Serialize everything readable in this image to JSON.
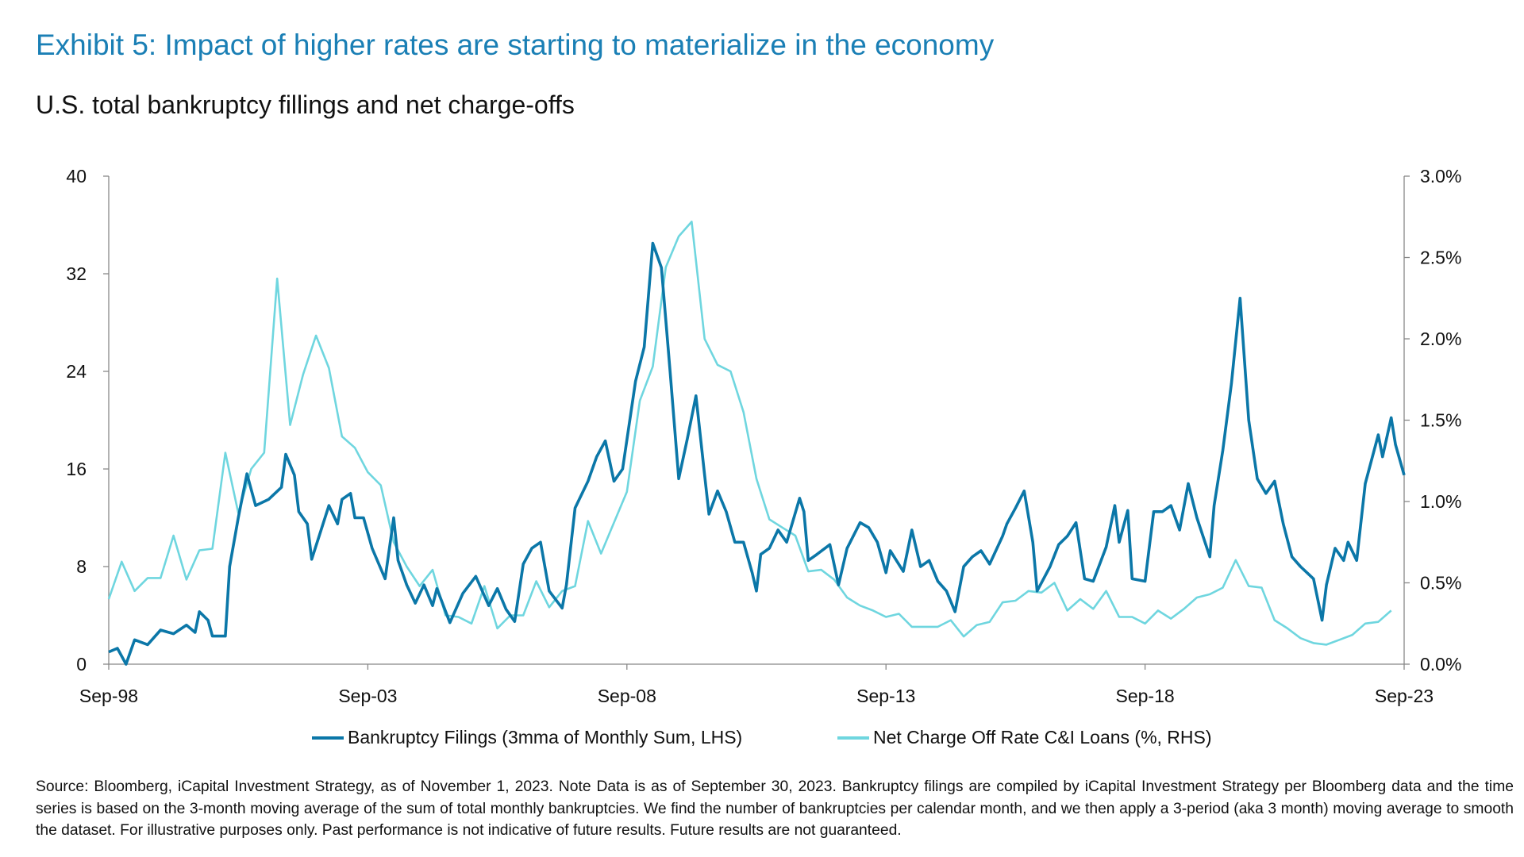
{
  "title": "Exhibit 5: Impact of higher rates are starting to materialize in the economy",
  "subtitle": "U.S. total bankruptcy fillings and net charge-offs",
  "footnote": "Source: Bloomberg, iCapital Investment Strategy, as of November 1, 2023. Note Data is as of September 30, 2023. Bankruptcy filings are compiled by iCapital Investment Strategy per Bloomberg data and the time series is based on the 3-month moving average of the sum of total monthly bankruptcies. We find the number of bankruptcies per calendar month, and we then apply a 3-period (aka 3 month) moving average to smooth the dataset. For illustrative purposes only. Past performance is not indicative of future results. Future results are not guaranteed.",
  "colors": {
    "title": "#1a7fb5",
    "bankruptcy": "#0b77a8",
    "nco": "#6fd6df"
  },
  "chart_data": {
    "type": "line",
    "legend_placement": "bottom",
    "grid": false,
    "x_range": [
      "1998-09",
      "2023-09"
    ],
    "x_ticks": [
      "Sep-98",
      "Sep-03",
      "Sep-08",
      "Sep-13",
      "Sep-18",
      "Sep-23"
    ],
    "y_left": {
      "range": [
        0,
        40
      ],
      "ticks": [
        "0",
        "8",
        "16",
        "24",
        "32",
        "40"
      ]
    },
    "y_right": {
      "range": [
        0,
        3.0
      ],
      "ticks": [
        "0.0%",
        "0.5%",
        "1.0%",
        "1.5%",
        "2.0%",
        "2.5%",
        "3.0%"
      ]
    },
    "series": [
      {
        "name": "Bankruptcy Filings (3mma of Monthly Sum, LHS)",
        "axis": "left",
        "points": [
          [
            "1998-09",
            1.0
          ],
          [
            "1998-11",
            1.3
          ],
          [
            "1999-01",
            0
          ],
          [
            "1999-03",
            2
          ],
          [
            "1999-06",
            1.6
          ],
          [
            "1999-09",
            2.8
          ],
          [
            "1999-12",
            2.5
          ],
          [
            "2000-03",
            3.2
          ],
          [
            "2000-05",
            2.6
          ],
          [
            "2000-06",
            4.3
          ],
          [
            "2000-08",
            3.6
          ],
          [
            "2000-09",
            2.3
          ],
          [
            "2000-12",
            2.3
          ],
          [
            "2001-01",
            8
          ],
          [
            "2001-03",
            12
          ],
          [
            "2001-05",
            15.6
          ],
          [
            "2001-07",
            13
          ],
          [
            "2001-10",
            13.5
          ],
          [
            "2002-01",
            14.5
          ],
          [
            "2002-02",
            17.2
          ],
          [
            "2002-04",
            15.5
          ],
          [
            "2002-05",
            12.5
          ],
          [
            "2002-07",
            11.5
          ],
          [
            "2002-08",
            8.6
          ],
          [
            "2002-12",
            13
          ],
          [
            "2003-02",
            11.5
          ],
          [
            "2003-03",
            13.5
          ],
          [
            "2003-05",
            14
          ],
          [
            "2003-06",
            12
          ],
          [
            "2003-08",
            12
          ],
          [
            "2003-10",
            9.5
          ],
          [
            "2004-01",
            7
          ],
          [
            "2004-03",
            12
          ],
          [
            "2004-04",
            8.5
          ],
          [
            "2004-06",
            6.5
          ],
          [
            "2004-08",
            5
          ],
          [
            "2004-10",
            6.5
          ],
          [
            "2004-12",
            4.8
          ],
          [
            "2005-01",
            6.2
          ],
          [
            "2005-04",
            3.4
          ],
          [
            "2005-07",
            5.8
          ],
          [
            "2005-10",
            7.2
          ],
          [
            "2006-01",
            4.8
          ],
          [
            "2006-03",
            6.2
          ],
          [
            "2006-05",
            4.5
          ],
          [
            "2006-07",
            3.5
          ],
          [
            "2006-09",
            8.2
          ],
          [
            "2006-11",
            9.5
          ],
          [
            "2007-01",
            10
          ],
          [
            "2007-03",
            6
          ],
          [
            "2007-06",
            4.6
          ],
          [
            "2007-07",
            6.5
          ],
          [
            "2007-09",
            12.8
          ],
          [
            "2007-12",
            15
          ],
          [
            "2008-02",
            17
          ],
          [
            "2008-04",
            18.3
          ],
          [
            "2008-06",
            15
          ],
          [
            "2008-08",
            16
          ],
          [
            "2008-11",
            23.2
          ],
          [
            "2009-01",
            26
          ],
          [
            "2009-03",
            34.5
          ],
          [
            "2009-05",
            32.5
          ],
          [
            "2009-07",
            24
          ],
          [
            "2009-09",
            15.2
          ],
          [
            "2009-11",
            18.5
          ],
          [
            "2010-01",
            22
          ],
          [
            "2010-03",
            15.5
          ],
          [
            "2010-04",
            12.3
          ],
          [
            "2010-06",
            14.2
          ],
          [
            "2010-08",
            12.5
          ],
          [
            "2010-10",
            10
          ],
          [
            "2010-12",
            10
          ],
          [
            "2011-02",
            7.5
          ],
          [
            "2011-03",
            6
          ],
          [
            "2011-04",
            9
          ],
          [
            "2011-06",
            9.5
          ],
          [
            "2011-08",
            11
          ],
          [
            "2011-10",
            10
          ],
          [
            "2012-01",
            13.6
          ],
          [
            "2012-02",
            12.5
          ],
          [
            "2012-03",
            8.5
          ],
          [
            "2012-05",
            9
          ],
          [
            "2012-08",
            9.8
          ],
          [
            "2012-10",
            6.5
          ],
          [
            "2012-12",
            9.5
          ],
          [
            "2013-03",
            11.6
          ],
          [
            "2013-05",
            11.2
          ],
          [
            "2013-07",
            10
          ],
          [
            "2013-09",
            7.5
          ],
          [
            "2013-10",
            9.3
          ],
          [
            "2014-01",
            7.6
          ],
          [
            "2014-03",
            11
          ],
          [
            "2014-05",
            8
          ],
          [
            "2014-07",
            8.5
          ],
          [
            "2014-09",
            6.8
          ],
          [
            "2014-11",
            6
          ],
          [
            "2015-01",
            4.3
          ],
          [
            "2015-03",
            8
          ],
          [
            "2015-05",
            8.8
          ],
          [
            "2015-07",
            9.3
          ],
          [
            "2015-09",
            8.2
          ],
          [
            "2015-12",
            10.5
          ],
          [
            "2016-01",
            11.5
          ],
          [
            "2016-03",
            12.8
          ],
          [
            "2016-05",
            14.2
          ],
          [
            "2016-07",
            10
          ],
          [
            "2016-08",
            6
          ],
          [
            "2016-11",
            8
          ],
          [
            "2017-01",
            9.8
          ],
          [
            "2017-03",
            10.5
          ],
          [
            "2017-05",
            11.6
          ],
          [
            "2017-07",
            7
          ],
          [
            "2017-09",
            6.8
          ],
          [
            "2017-12",
            9.6
          ],
          [
            "2018-02",
            13
          ],
          [
            "2018-03",
            10
          ],
          [
            "2018-05",
            12.6
          ],
          [
            "2018-06",
            7
          ],
          [
            "2018-09",
            6.8
          ],
          [
            "2018-11",
            12.5
          ],
          [
            "2019-01",
            12.5
          ],
          [
            "2019-03",
            13
          ],
          [
            "2019-05",
            11
          ],
          [
            "2019-07",
            14.8
          ],
          [
            "2019-09",
            12
          ],
          [
            "2019-12",
            8.8
          ],
          [
            "2020-01",
            13
          ],
          [
            "2020-03",
            17.5
          ],
          [
            "2020-05",
            23
          ],
          [
            "2020-07",
            30
          ],
          [
            "2020-09",
            20
          ],
          [
            "2020-11",
            15.2
          ],
          [
            "2021-01",
            14
          ],
          [
            "2021-03",
            15
          ],
          [
            "2021-05",
            11.5
          ],
          [
            "2021-07",
            8.8
          ],
          [
            "2021-09",
            8
          ],
          [
            "2021-12",
            7
          ],
          [
            "2022-02",
            3.6
          ],
          [
            "2022-03",
            6.5
          ],
          [
            "2022-05",
            9.5
          ],
          [
            "2022-07",
            8.5
          ],
          [
            "2022-08",
            10
          ],
          [
            "2022-10",
            8.5
          ],
          [
            "2022-12",
            14.8
          ],
          [
            "2023-03",
            18.8
          ],
          [
            "2023-04",
            17
          ],
          [
            "2023-06",
            20.2
          ],
          [
            "2023-07",
            18
          ],
          [
            "2023-09",
            15.5
          ]
        ]
      },
      {
        "name": "Net Charge Off Rate C&I Loans (%, RHS)",
        "axis": "right",
        "points": [
          [
            "1998-09",
            0.4
          ],
          [
            "1998-12",
            0.63
          ],
          [
            "1999-03",
            0.45
          ],
          [
            "1999-06",
            0.53
          ],
          [
            "1999-09",
            0.53
          ],
          [
            "1999-12",
            0.79
          ],
          [
            "2000-03",
            0.52
          ],
          [
            "2000-06",
            0.7
          ],
          [
            "2000-09",
            0.71
          ],
          [
            "2000-12",
            1.3
          ],
          [
            "2001-03",
            0.93
          ],
          [
            "2001-06",
            1.2
          ],
          [
            "2001-09",
            1.3
          ],
          [
            "2001-12",
            2.37
          ],
          [
            "2002-03",
            1.47
          ],
          [
            "2002-06",
            1.78
          ],
          [
            "2002-09",
            2.02
          ],
          [
            "2002-12",
            1.82
          ],
          [
            "2003-03",
            1.4
          ],
          [
            "2003-06",
            1.33
          ],
          [
            "2003-09",
            1.18
          ],
          [
            "2003-12",
            1.1
          ],
          [
            "2004-03",
            0.75
          ],
          [
            "2004-06",
            0.6
          ],
          [
            "2004-09",
            0.48
          ],
          [
            "2004-12",
            0.58
          ],
          [
            "2005-03",
            0.3
          ],
          [
            "2005-06",
            0.29
          ],
          [
            "2005-09",
            0.25
          ],
          [
            "2005-12",
            0.48
          ],
          [
            "2006-03",
            0.22
          ],
          [
            "2006-06",
            0.3
          ],
          [
            "2006-09",
            0.3
          ],
          [
            "2006-12",
            0.51
          ],
          [
            "2007-03",
            0.35
          ],
          [
            "2007-06",
            0.45
          ],
          [
            "2007-09",
            0.48
          ],
          [
            "2007-12",
            0.88
          ],
          [
            "2008-03",
            0.68
          ],
          [
            "2008-06",
            0.87
          ],
          [
            "2008-09",
            1.06
          ],
          [
            "2008-12",
            1.62
          ],
          [
            "2009-03",
            1.83
          ],
          [
            "2009-06",
            2.44
          ],
          [
            "2009-09",
            2.63
          ],
          [
            "2009-12",
            2.72
          ],
          [
            "2010-03",
            2.0
          ],
          [
            "2010-06",
            1.84
          ],
          [
            "2010-09",
            1.8
          ],
          [
            "2010-12",
            1.55
          ],
          [
            "2011-03",
            1.14
          ],
          [
            "2011-06",
            0.89
          ],
          [
            "2011-09",
            0.84
          ],
          [
            "2011-12",
            0.79
          ],
          [
            "2012-03",
            0.57
          ],
          [
            "2012-06",
            0.58
          ],
          [
            "2012-09",
            0.52
          ],
          [
            "2012-12",
            0.41
          ],
          [
            "2013-03",
            0.36
          ],
          [
            "2013-06",
            0.33
          ],
          [
            "2013-09",
            0.29
          ],
          [
            "2013-12",
            0.31
          ],
          [
            "2014-03",
            0.23
          ],
          [
            "2014-06",
            0.23
          ],
          [
            "2014-09",
            0.23
          ],
          [
            "2014-12",
            0.27
          ],
          [
            "2015-03",
            0.17
          ],
          [
            "2015-06",
            0.24
          ],
          [
            "2015-09",
            0.26
          ],
          [
            "2015-12",
            0.38
          ],
          [
            "2016-03",
            0.39
          ],
          [
            "2016-06",
            0.45
          ],
          [
            "2016-09",
            0.44
          ],
          [
            "2016-12",
            0.5
          ],
          [
            "2017-03",
            0.33
          ],
          [
            "2017-06",
            0.4
          ],
          [
            "2017-09",
            0.34
          ],
          [
            "2017-12",
            0.45
          ],
          [
            "2018-03",
            0.29
          ],
          [
            "2018-06",
            0.29
          ],
          [
            "2018-09",
            0.25
          ],
          [
            "2018-12",
            0.33
          ],
          [
            "2019-03",
            0.28
          ],
          [
            "2019-06",
            0.34
          ],
          [
            "2019-09",
            0.41
          ],
          [
            "2019-12",
            0.43
          ],
          [
            "2020-03",
            0.47
          ],
          [
            "2020-06",
            0.64
          ],
          [
            "2020-09",
            0.48
          ],
          [
            "2020-12",
            0.47
          ],
          [
            "2021-03",
            0.27
          ],
          [
            "2021-06",
            0.22
          ],
          [
            "2021-09",
            0.16
          ],
          [
            "2021-12",
            0.13
          ],
          [
            "2022-03",
            0.12
          ],
          [
            "2022-06",
            0.15
          ],
          [
            "2022-09",
            0.18
          ],
          [
            "2022-12",
            0.25
          ],
          [
            "2023-03",
            0.26
          ],
          [
            "2023-06",
            0.33
          ]
        ]
      }
    ]
  }
}
